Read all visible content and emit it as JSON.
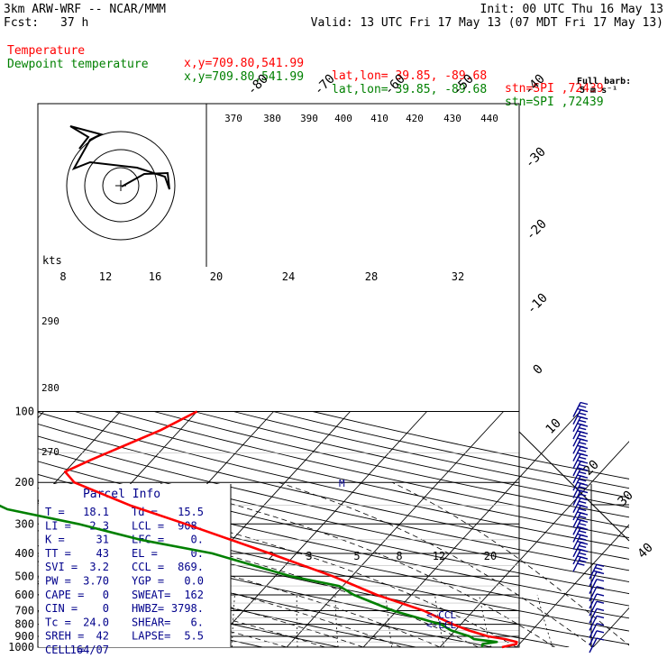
{
  "header": {
    "model": "3km ARW-WRF -- NCAR/MMM",
    "init": "Init: 00 UTC Thu 16 May 13",
    "fcst_label": "Fcst:",
    "fcst_value": "37 h",
    "valid": "Valid: 13 UTC Fri 17 May 13 (07 MDT Fri 17 May 13)"
  },
  "legend": [
    {
      "name": "Temperature",
      "color": "#ff0000",
      "xy": "x,y=709.80,541.99",
      "latlon": "lat,lon= 39.85, -89.68",
      "stn": "stn=SPI ,72439"
    },
    {
      "name": "Dewpoint temperature",
      "color": "#008000",
      "xy": "x,y=709.80,541.99",
      "latlon": "lat,lon= 39.85, -89.68",
      "stn": "stn=SPI ,72439"
    }
  ],
  "barb_note": {
    "line1": "Full barb:",
    "line2": "5 m s⁻¹"
  },
  "hodograph": {
    "units": "kts",
    "ring_labels": [
      "8",
      "12",
      "16",
      "20",
      "24",
      "28",
      "32"
    ]
  },
  "parcel": {
    "title": "Parcel Info",
    "rows": [
      [
        "T   =",
        "18.1",
        "Td  =",
        "15.5"
      ],
      [
        "LI  =",
        "2.3",
        "LCL =",
        "908."
      ],
      [
        "K   =",
        "31",
        "LFC =",
        "0."
      ],
      [
        "TT  =",
        "43",
        "EL  =",
        "0."
      ],
      [
        "SVI =",
        "3.2",
        "CCL =",
        "869."
      ],
      [
        "PW  =",
        "3.70",
        "YGP =",
        "0.0"
      ],
      [
        "CAPE =",
        "0",
        "SWEAT=",
        "162"
      ],
      [
        "CIN =",
        "0",
        "HWBZ=",
        "3798."
      ],
      [
        "Tc  =",
        "24.0",
        "SHEAR=",
        "6."
      ],
      [
        "SREH =",
        "42",
        "LAPSE=",
        "5.5"
      ],
      [
        "CELL =",
        "164/07",
        "",
        ""
      ]
    ]
  },
  "markers": {
    "ccl": "<-CCL",
    "lcl": "<-LCL",
    "m": "M"
  },
  "chart_data": {
    "type": "line",
    "title": "",
    "ylabel": "",
    "y_pressure_levels": [
      100,
      200,
      300,
      400,
      500,
      600,
      700,
      800,
      900,
      1000
    ],
    "skewed_temp_labels": [
      -80,
      -70,
      -60,
      -50,
      -40,
      -30,
      -20,
      -10,
      0,
      10,
      20,
      30,
      40
    ],
    "theta_labels": [
      370,
      380,
      390,
      400,
      410,
      420,
      430,
      440
    ],
    "theta_side_labels": [
      290,
      280,
      270
    ],
    "mixing_ratio_labels": [
      2,
      3,
      5,
      8,
      12,
      20
    ],
    "series": [
      {
        "name": "Temperature",
        "color": "#ff0000",
        "points": [
          [
            1000,
            18.1
          ],
          [
            970,
            19.6
          ],
          [
            950,
            19.4
          ],
          [
            925,
            17.6
          ],
          [
            900,
            15.0
          ],
          [
            850,
            11.8
          ],
          [
            800,
            9.0
          ],
          [
            700,
            3.5
          ],
          [
            600,
            -4.5
          ],
          [
            500,
            -12.5
          ],
          [
            400,
            -23.5
          ],
          [
            300,
            -38.0
          ],
          [
            250,
            -47.5
          ],
          [
            200,
            -57.5
          ],
          [
            180,
            -60.0
          ],
          [
            160,
            -58.0
          ],
          [
            120,
            -52.5
          ],
          [
            100,
            -50.0
          ]
        ]
      },
      {
        "name": "Dewpoint temperature",
        "color": "#008000",
        "points": [
          [
            1000,
            15.5
          ],
          [
            970,
            15.2
          ],
          [
            950,
            16.8
          ],
          [
            925,
            13.5
          ],
          [
            900,
            12.6
          ],
          [
            850,
            9.5
          ],
          [
            800,
            7.4
          ],
          [
            700,
            -0.5
          ],
          [
            600,
            -7.5
          ],
          [
            550,
            -10.5
          ],
          [
            500,
            -18.0
          ],
          [
            400,
            -31.0
          ],
          [
            350,
            -42.0
          ],
          [
            300,
            -52.0
          ],
          [
            260,
            -63.0
          ],
          [
            230,
            -68.0
          ],
          [
            200,
            -73.0
          ],
          [
            160,
            -80.0
          ],
          [
            130,
            -80.0
          ],
          [
            100,
            -82.0
          ]
        ]
      }
    ],
    "hodograph_trace": [
      [
        135,
        207
      ],
      [
        160,
        193
      ],
      [
        186,
        192
      ],
      [
        188,
        210
      ],
      [
        183,
        196
      ],
      [
        152,
        186
      ],
      [
        100,
        180
      ],
      [
        82,
        187
      ],
      [
        100,
        155
      ],
      [
        112,
        149
      ],
      [
        78,
        140
      ],
      [
        98,
        152
      ],
      [
        88,
        165
      ]
    ],
    "wind_barbs": {
      "count": 33,
      "from_pressure": 100,
      "to_pressure": 1000
    }
  }
}
